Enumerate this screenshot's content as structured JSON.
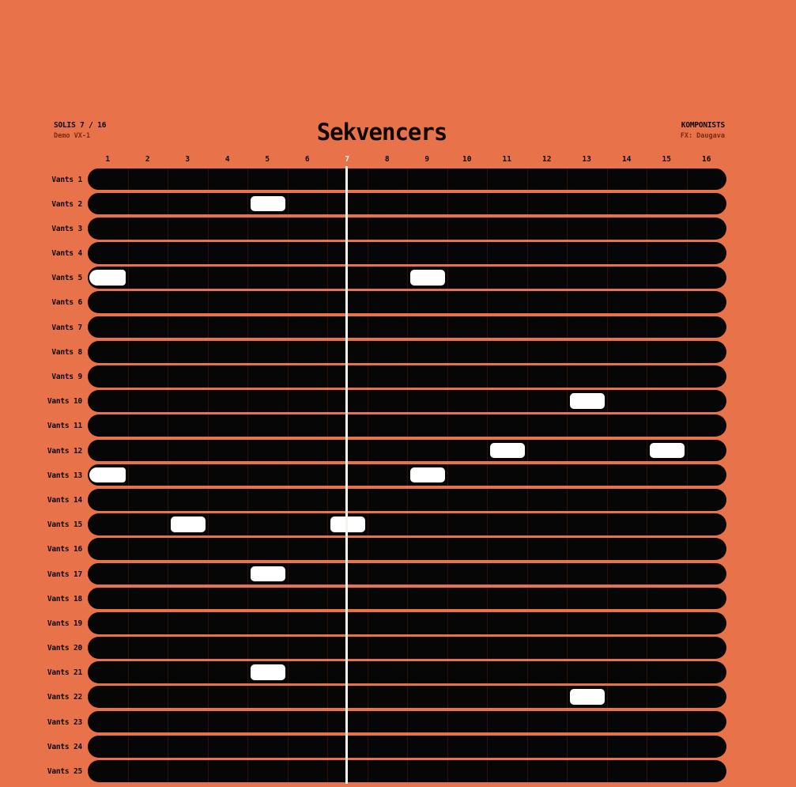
{
  "header": {
    "step_counter": "SOLIS 7 / 16",
    "demo_label": "Demo VX-1",
    "title": "Sekvencers",
    "right_title": "KOMPONISTS",
    "right_subtitle": "FX: Daugava"
  },
  "sequencer": {
    "total_steps": 16,
    "current_step": 7,
    "column_labels": [
      "1",
      "2",
      "3",
      "4",
      "5",
      "6",
      "7",
      "8",
      "9",
      "10",
      "11",
      "12",
      "13",
      "14",
      "15",
      "16"
    ],
    "tracks": [
      {
        "label": "Vants 1",
        "active_steps": []
      },
      {
        "label": "Vants 2",
        "active_steps": [
          5
        ]
      },
      {
        "label": "Vants 3",
        "active_steps": []
      },
      {
        "label": "Vants 4",
        "active_steps": []
      },
      {
        "label": "Vants 5",
        "active_steps": [
          1,
          9
        ]
      },
      {
        "label": "Vants 6",
        "active_steps": []
      },
      {
        "label": "Vants 7",
        "active_steps": []
      },
      {
        "label": "Vants 8",
        "active_steps": []
      },
      {
        "label": "Vants 9",
        "active_steps": []
      },
      {
        "label": "Vants 10",
        "active_steps": [
          13
        ]
      },
      {
        "label": "Vants 11",
        "active_steps": []
      },
      {
        "label": "Vants 12",
        "active_steps": [
          11,
          15
        ]
      },
      {
        "label": "Vants 13",
        "active_steps": [
          1,
          9
        ]
      },
      {
        "label": "Vants 14",
        "active_steps": []
      },
      {
        "label": "Vants 15",
        "active_steps": [
          3,
          7
        ]
      },
      {
        "label": "Vants 16",
        "active_steps": []
      },
      {
        "label": "Vants 17",
        "active_steps": [
          5
        ]
      },
      {
        "label": "Vants 18",
        "active_steps": []
      },
      {
        "label": "Vants 19",
        "active_steps": []
      },
      {
        "label": "Vants 20",
        "active_steps": []
      },
      {
        "label": "Vants 21",
        "active_steps": [
          5
        ]
      },
      {
        "label": "Vants 22",
        "active_steps": [
          13
        ]
      },
      {
        "label": "Vants 23",
        "active_steps": []
      },
      {
        "label": "Vants 24",
        "active_steps": []
      },
      {
        "label": "Vants 25",
        "active_steps": []
      }
    ]
  },
  "colors": {
    "background": "#E8734A",
    "track_fill": "#060606",
    "active_cell": "#FFFFFF",
    "playhead": "#F7F4EF",
    "primary_text": "#0D0602",
    "accent_text": "#7C2A12",
    "grid_line": "#2B130B"
  }
}
